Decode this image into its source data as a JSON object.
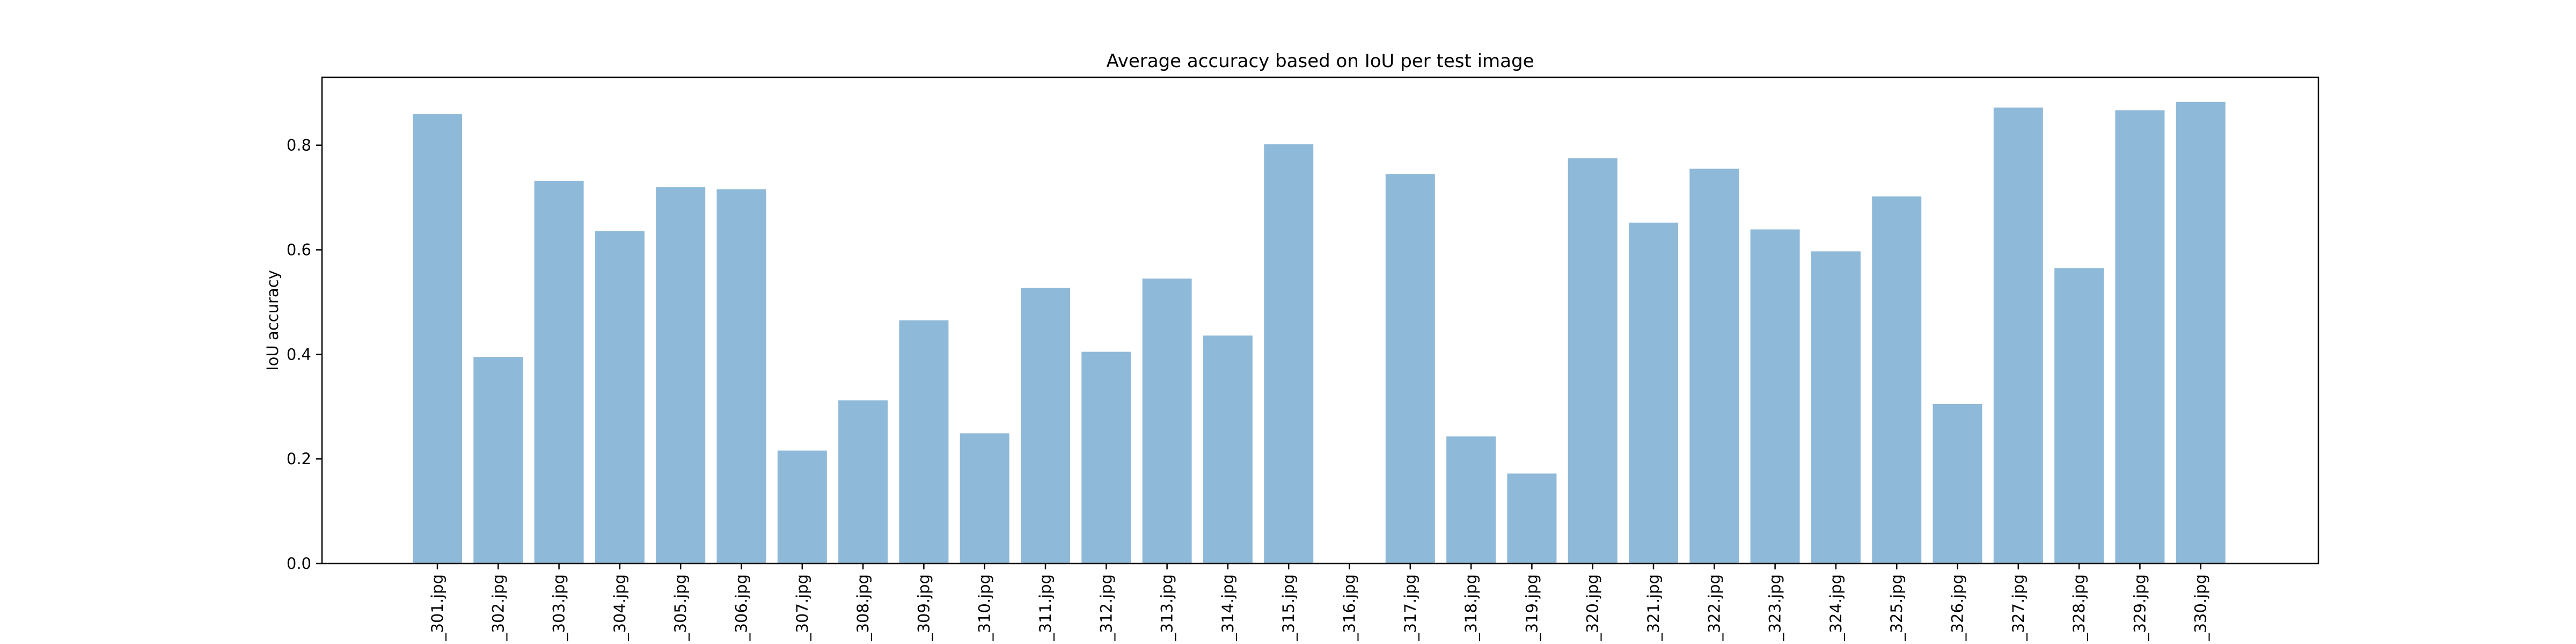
{
  "chart_data": {
    "type": "bar",
    "title": "Average accuracy based on IoU per test image",
    "xlabel": "",
    "ylabel": "IoU accuracy",
    "ylim": [
      0,
      0.93
    ],
    "yticks": [
      0.0,
      0.2,
      0.4,
      0.6,
      0.8
    ],
    "ytick_labels": [
      "0.0",
      "0.2",
      "0.4",
      "0.6",
      "0.8"
    ],
    "categories": [
      "_301.jpg",
      "_302.jpg",
      "_303.jpg",
      "_304.jpg",
      "_305.jpg",
      "_306.jpg",
      "_307.jpg",
      "_308.jpg",
      "_309.jpg",
      "_310.jpg",
      "_311.jpg",
      "_312.jpg",
      "_313.jpg",
      "_314.jpg",
      "_315.jpg",
      "_316.jpg",
      "_317.jpg",
      "_318.jpg",
      "_319.jpg",
      "_320.jpg",
      "_321.jpg",
      "_322.jpg",
      "_323.jpg",
      "_324.jpg",
      "_325.jpg",
      "_326.jpg",
      "_327.jpg",
      "_328.jpg",
      "_329.jpg",
      "_330.jpg"
    ],
    "values": [
      0.86,
      0.395,
      0.732,
      0.636,
      0.72,
      0.716,
      0.216,
      0.312,
      0.465,
      0.249,
      0.527,
      0.405,
      0.545,
      0.436,
      0.802,
      0.0,
      0.745,
      0.243,
      0.172,
      0.775,
      0.652,
      0.755,
      0.639,
      0.597,
      0.702,
      0.305,
      0.872,
      0.565,
      0.867,
      0.883
    ],
    "grid": false,
    "bar_color": "#8fb9d9"
  }
}
